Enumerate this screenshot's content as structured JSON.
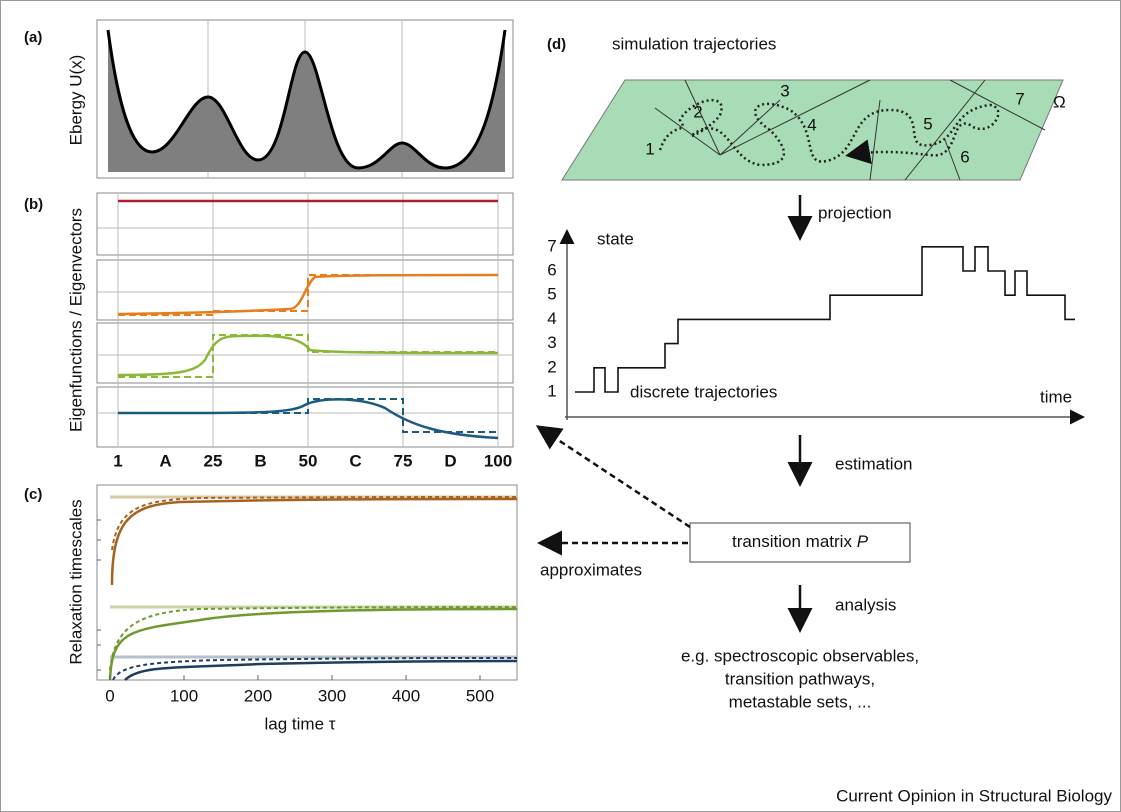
{
  "panel_a": {
    "label": "(a)",
    "y_label": "Ebergy U(x)"
  },
  "panel_b": {
    "label": "(b)",
    "y_label": "Eigenfunctions / Eigenvectors",
    "x_ticks": [
      "1",
      "A",
      "25",
      "B",
      "50",
      "C",
      "75",
      "D",
      "100"
    ]
  },
  "panel_c": {
    "label": "(c)",
    "y_label": "Relaxation timescales",
    "x_label": "lag time τ",
    "x_ticks": [
      "0",
      "100",
      "200",
      "300",
      "400",
      "500"
    ]
  },
  "panel_d": {
    "label": "(d)",
    "title": "simulation trajectories",
    "omega": "Ω",
    "regions": [
      "1",
      "2",
      "3",
      "4",
      "5",
      "6",
      "7"
    ],
    "projection": "projection",
    "y_label": "state",
    "y_ticks": [
      "1",
      "2",
      "3",
      "4",
      "5",
      "6",
      "7"
    ],
    "x_label": "time",
    "trajectory_label": "discrete trajectories",
    "estimation": "estimation",
    "matrix": "transition matrix",
    "matrix_symbol": "P",
    "analysis": "analysis",
    "analysis_text": [
      "e.g. spectroscopic observables,",
      "transition pathways,",
      "metastable sets, ..."
    ]
  },
  "approximates": "approximates",
  "credit": "Current Opinion in Structural Biology"
}
